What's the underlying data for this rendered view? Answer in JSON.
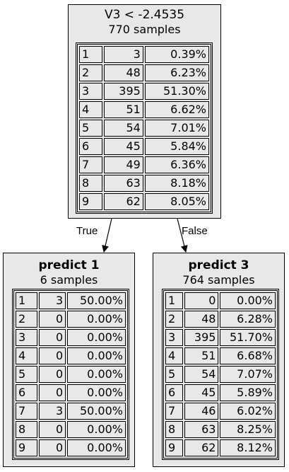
{
  "root": {
    "title": "V3 < -2.4535",
    "samples_text": "770 samples",
    "rows": [
      {
        "cls": "1",
        "count": "3",
        "pct": "0.39%"
      },
      {
        "cls": "2",
        "count": "48",
        "pct": "6.23%"
      },
      {
        "cls": "3",
        "count": "395",
        "pct": "51.30%"
      },
      {
        "cls": "4",
        "count": "51",
        "pct": "6.62%"
      },
      {
        "cls": "5",
        "count": "54",
        "pct": "7.01%"
      },
      {
        "cls": "6",
        "count": "45",
        "pct": "5.84%"
      },
      {
        "cls": "7",
        "count": "49",
        "pct": "6.36%"
      },
      {
        "cls": "8",
        "count": "63",
        "pct": "8.18%"
      },
      {
        "cls": "9",
        "count": "62",
        "pct": "8.05%"
      }
    ]
  },
  "left": {
    "title": "predict 1",
    "samples_text": "6 samples",
    "rows": [
      {
        "cls": "1",
        "count": "3",
        "pct": "50.00%"
      },
      {
        "cls": "2",
        "count": "0",
        "pct": "0.00%"
      },
      {
        "cls": "3",
        "count": "0",
        "pct": "0.00%"
      },
      {
        "cls": "4",
        "count": "0",
        "pct": "0.00%"
      },
      {
        "cls": "5",
        "count": "0",
        "pct": "0.00%"
      },
      {
        "cls": "6",
        "count": "0",
        "pct": "0.00%"
      },
      {
        "cls": "7",
        "count": "3",
        "pct": "50.00%"
      },
      {
        "cls": "8",
        "count": "0",
        "pct": "0.00%"
      },
      {
        "cls": "9",
        "count": "0",
        "pct": "0.00%"
      }
    ]
  },
  "right": {
    "title": "predict 3",
    "samples_text": "764 samples",
    "rows": [
      {
        "cls": "1",
        "count": "0",
        "pct": "0.00%"
      },
      {
        "cls": "2",
        "count": "48",
        "pct": "6.28%"
      },
      {
        "cls": "3",
        "count": "395",
        "pct": "51.70%"
      },
      {
        "cls": "4",
        "count": "51",
        "pct": "6.68%"
      },
      {
        "cls": "5",
        "count": "54",
        "pct": "7.07%"
      },
      {
        "cls": "6",
        "count": "45",
        "pct": "5.89%"
      },
      {
        "cls": "7",
        "count": "46",
        "pct": "6.02%"
      },
      {
        "cls": "8",
        "count": "63",
        "pct": "8.25%"
      },
      {
        "cls": "9",
        "count": "62",
        "pct": "8.12%"
      }
    ]
  },
  "edges": {
    "true_label": "True",
    "false_label": "False"
  },
  "colors": {
    "node_fill": "#e8e8e8",
    "stroke": "#000000"
  }
}
